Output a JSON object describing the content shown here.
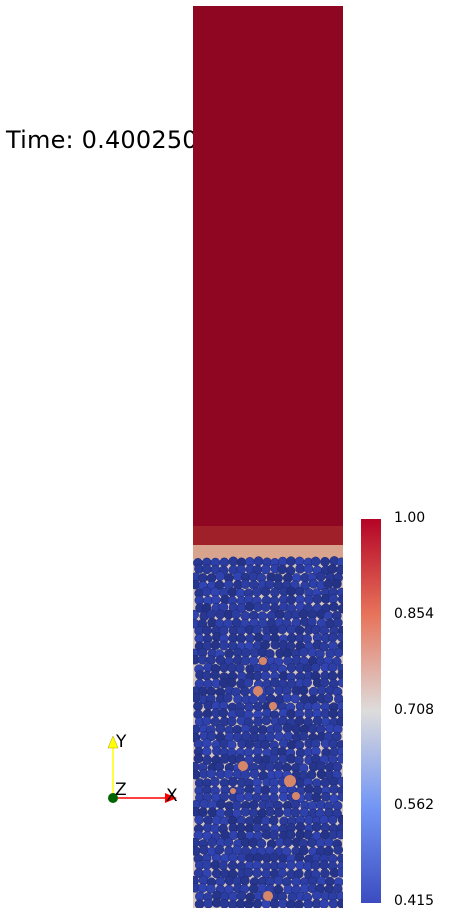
{
  "time_label": "Time: 0.400250",
  "colorbar": {
    "ticks": [
      "1.00",
      "0.854",
      "0.708",
      "0.562",
      "0.415"
    ],
    "colors": [
      "#b40426",
      "#e7745b",
      "#dddcdc",
      "#7396f5",
      "#3b4cc0"
    ]
  },
  "orientation_axes": {
    "x_label": "X",
    "y_label": "Y",
    "z_label": "Z",
    "x_color": "#ff0000",
    "y_color": "#ffff00",
    "z_color": "#006400"
  },
  "domain": {
    "fluid_color": "#8e0622",
    "particle_color": "#2a3b9c",
    "void_color": "#d6876a"
  }
}
